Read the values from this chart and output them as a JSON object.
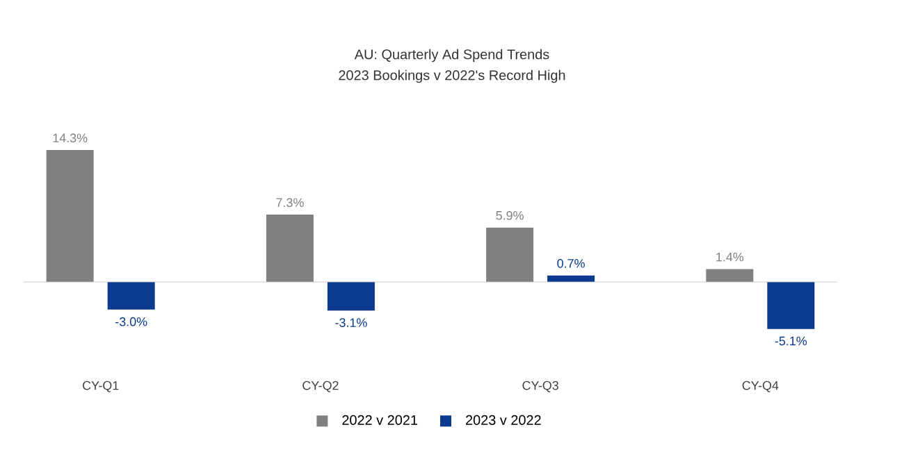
{
  "chart_data": {
    "type": "bar",
    "title": "AU: Quarterly Ad Spend Trends",
    "subtitle": "2023 Bookings v 2022's Record High",
    "categories": [
      "CY-Q1",
      "CY-Q2",
      "CY-Q3",
      "CY-Q4"
    ],
    "series": [
      {
        "name": "2022 v 2021",
        "color": "#808080",
        "values": [
          14.3,
          7.3,
          5.9,
          1.4
        ],
        "value_labels": [
          "14.3%",
          "7.3%",
          "5.9%",
          "1.4%"
        ]
      },
      {
        "name": "2023 v 2022",
        "color": "#0b3a8f",
        "values": [
          -3.0,
          -3.1,
          0.7,
          -5.1
        ],
        "value_labels": [
          "-3.0%",
          "-3.1%",
          "0.7%",
          "-5.1%"
        ]
      }
    ],
    "legend": "bottom"
  }
}
